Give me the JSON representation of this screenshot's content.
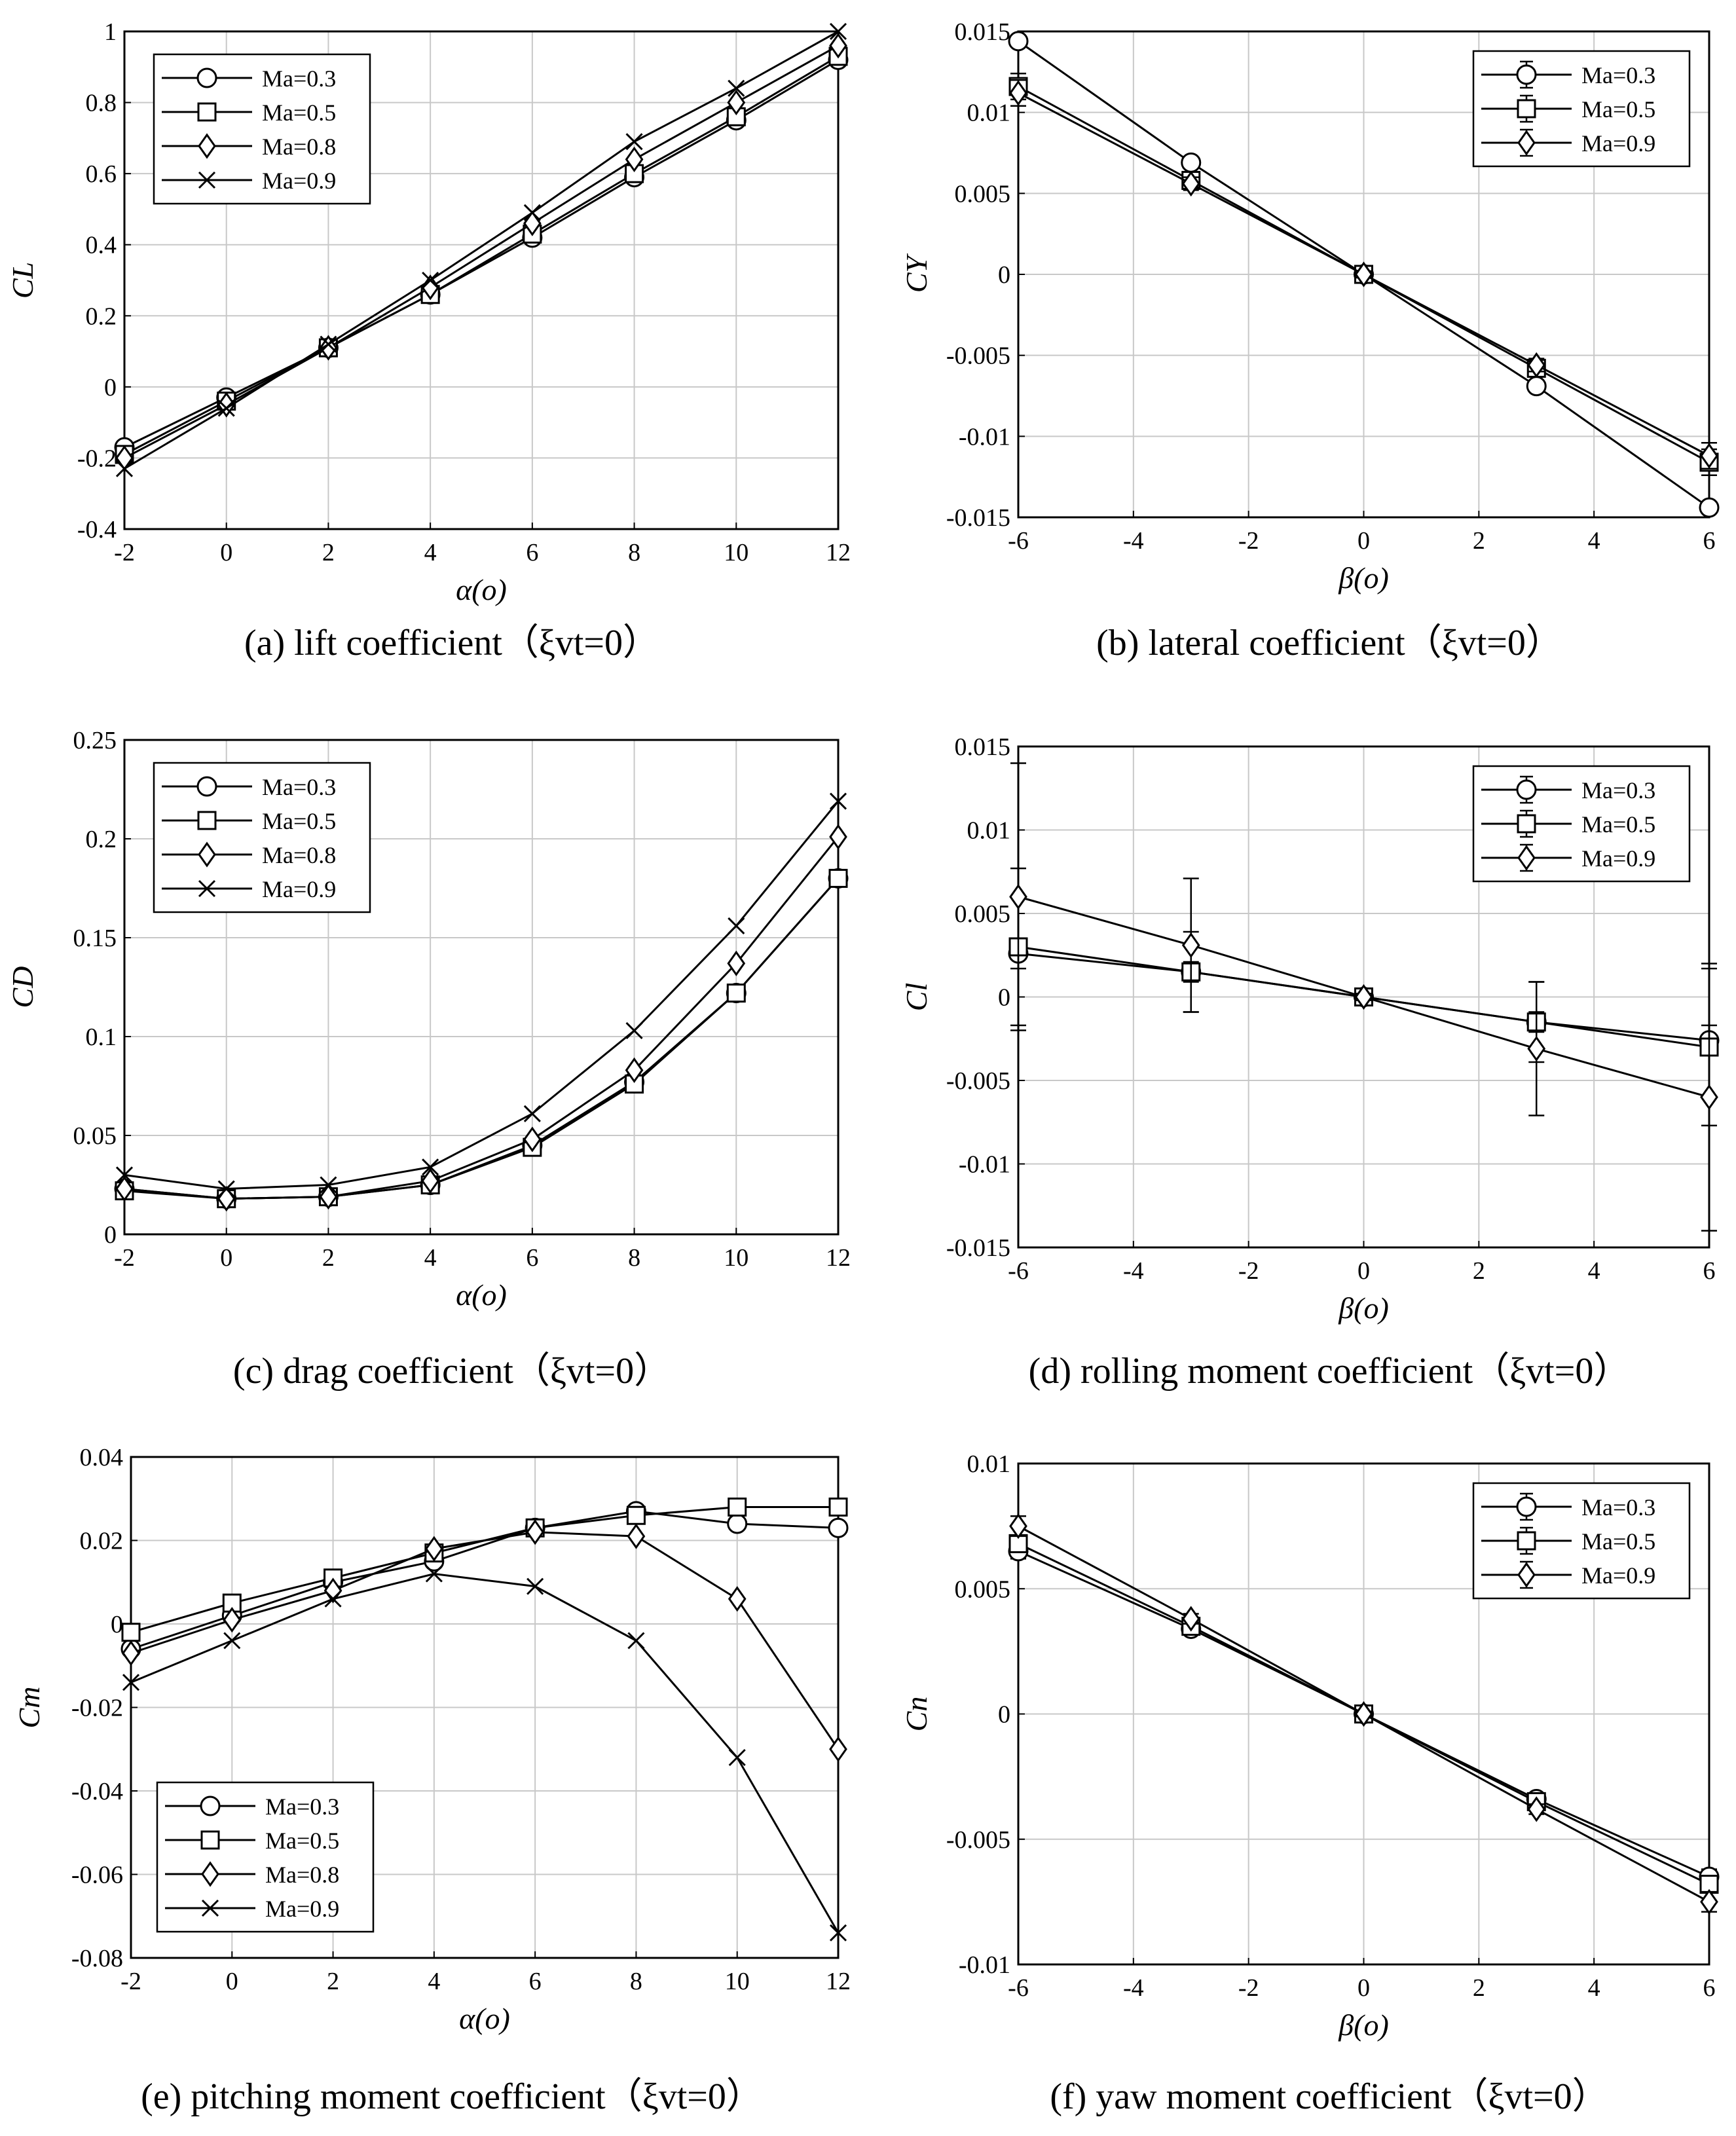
{
  "figure": "aerodynamic coefficients",
  "chart_data": [
    {
      "id": "a",
      "type": "line",
      "title": "(a) lift coefficient（ξvt=0）",
      "xlabel": "α(o)",
      "ylabel": "CL",
      "xlim": [
        -2,
        12
      ],
      "ylim": [
        -0.4,
        1.0
      ],
      "xticks": [
        -2,
        0,
        2,
        4,
        6,
        8,
        10,
        12
      ],
      "yticks": [
        -0.4,
        -0.2,
        0,
        0.2,
        0.4,
        0.6,
        0.8,
        1
      ],
      "ytick_labels": [
        "-0.4",
        "-0.2",
        "0",
        "0.2",
        "0.4",
        "0.6",
        "0.8",
        "1"
      ],
      "legend": "top-left",
      "x": [
        -2,
        0,
        2,
        4,
        6,
        8,
        10,
        12
      ],
      "series": [
        {
          "name": "Ma=0.3",
          "marker": "circle",
          "values": [
            -0.17,
            -0.03,
            0.11,
            0.26,
            0.42,
            0.59,
            0.75,
            0.92
          ]
        },
        {
          "name": "Ma=0.5",
          "marker": "square",
          "values": [
            -0.19,
            -0.04,
            0.11,
            0.26,
            0.43,
            0.6,
            0.76,
            0.93
          ]
        },
        {
          "name": "Ma=0.8",
          "marker": "diamond",
          "values": [
            -0.2,
            -0.05,
            0.11,
            0.28,
            0.46,
            0.64,
            0.8,
            0.96
          ]
        },
        {
          "name": "Ma=0.9",
          "marker": "x",
          "values": [
            -0.23,
            -0.06,
            0.12,
            0.3,
            0.49,
            0.69,
            0.84,
            1.0
          ]
        }
      ]
    },
    {
      "id": "b",
      "type": "line",
      "title": "(b) lateral coefficient（ξvt=0）",
      "xlabel": "β(o)",
      "ylabel": "CY",
      "xlim": [
        -6,
        6
      ],
      "ylim": [
        -0.015,
        0.015
      ],
      "xticks": [
        -6,
        -4,
        -2,
        0,
        2,
        4,
        6
      ],
      "yticks": [
        -0.015,
        -0.01,
        -0.005,
        0,
        0.005,
        0.01,
        0.015
      ],
      "ytick_labels": [
        "-0.015",
        "-0.01",
        "-0.005",
        "0",
        "0.005",
        "0.01",
        "0.015"
      ],
      "legend": "top-right",
      "x": [
        -6,
        -3,
        0,
        3,
        6
      ],
      "series": [
        {
          "name": "Ma=0.3",
          "marker": "circle",
          "values": [
            0.0144,
            0.0069,
            0,
            -0.0069,
            -0.0144
          ],
          "errors": [
            0.0003,
            0.0003,
            0.0002,
            0.0003,
            0.0003
          ]
        },
        {
          "name": "Ma=0.5",
          "marker": "square",
          "values": [
            0.0116,
            0.0058,
            0,
            -0.0058,
            -0.0116
          ],
          "errors": [
            0.0008,
            0.0004,
            0.0002,
            0.0004,
            0.0008
          ]
        },
        {
          "name": "Ma=0.9",
          "marker": "diamond",
          "values": [
            0.0112,
            0.0056,
            0,
            -0.0056,
            -0.0112
          ],
          "errors": [
            0.0008,
            0.0004,
            0.0002,
            0.0004,
            0.0008
          ]
        }
      ]
    },
    {
      "id": "c",
      "type": "line",
      "title": "(c) drag coefficient（ξvt=0）",
      "xlabel": "α(o)",
      "ylabel": "CD",
      "xlim": [
        -2,
        12
      ],
      "ylim": [
        0,
        0.25
      ],
      "xticks": [
        -2,
        0,
        2,
        4,
        6,
        8,
        10,
        12
      ],
      "yticks": [
        0,
        0.05,
        0.1,
        0.15,
        0.2,
        0.25
      ],
      "ytick_labels": [
        "0",
        "0.05",
        "0.1",
        "0.15",
        "0.2",
        "0.25"
      ],
      "legend": "top-left",
      "x": [
        -2,
        0,
        2,
        4,
        6,
        8,
        10,
        12
      ],
      "series": [
        {
          "name": "Ma=0.3",
          "marker": "circle",
          "values": [
            0.023,
            0.018,
            0.019,
            0.025,
            0.045,
            0.077,
            0.122,
            0.18
          ]
        },
        {
          "name": "Ma=0.5",
          "marker": "square",
          "values": [
            0.022,
            0.018,
            0.019,
            0.025,
            0.044,
            0.076,
            0.122,
            0.18
          ]
        },
        {
          "name": "Ma=0.8",
          "marker": "diamond",
          "values": [
            0.023,
            0.018,
            0.019,
            0.027,
            0.048,
            0.083,
            0.137,
            0.201
          ]
        },
        {
          "name": "Ma=0.9",
          "marker": "x",
          "values": [
            0.03,
            0.023,
            0.025,
            0.034,
            0.061,
            0.103,
            0.156,
            0.219
          ]
        }
      ]
    },
    {
      "id": "d",
      "type": "line",
      "title": "(d) rolling moment coefficient（ξvt=0）",
      "xlabel": "β(o)",
      "ylabel": "Cl",
      "xlim": [
        -6,
        6
      ],
      "ylim": [
        -0.015,
        0.015
      ],
      "xticks": [
        -6,
        -4,
        -2,
        0,
        2,
        4,
        6
      ],
      "yticks": [
        -0.015,
        -0.01,
        -0.005,
        0,
        0.005,
        0.01,
        0.015
      ],
      "ytick_labels": [
        "-0.015",
        "-0.01",
        "-0.005",
        "0",
        "0.005",
        "0.01",
        "0.015"
      ],
      "legend": "top-right",
      "x": [
        -6,
        -3,
        0,
        3,
        6
      ],
      "series": [
        {
          "name": "Ma=0.3",
          "marker": "circle",
          "values": [
            0.0026,
            0.0015,
            0,
            -0.0015,
            -0.0026
          ],
          "errors": [
            0.0009,
            0.0006,
            0.0002,
            0.0006,
            0.0009
          ]
        },
        {
          "name": "Ma=0.5",
          "marker": "square",
          "values": [
            0.003,
            0.0015,
            0,
            -0.0015,
            -0.003
          ],
          "errors": [
            0.0047,
            0.0024,
            0.0002,
            0.0024,
            0.0047
          ]
        },
        {
          "name": "Ma=0.9",
          "marker": "diamond",
          "values": [
            0.006,
            0.0031,
            0,
            -0.0031,
            -0.006
          ],
          "errors": [
            0.008,
            0.004,
            0.0002,
            0.004,
            0.008
          ]
        }
      ]
    },
    {
      "id": "e",
      "type": "line",
      "title": "(e) pitching moment coefficient（ξvt=0）",
      "xlabel": "α(o)",
      "ylabel": "Cm",
      "xlim": [
        -2,
        12
      ],
      "ylim": [
        -0.08,
        0.04
      ],
      "xticks": [
        -2,
        0,
        2,
        4,
        6,
        8,
        10,
        12
      ],
      "yticks": [
        -0.08,
        -0.06,
        -0.04,
        -0.02,
        0,
        0.02,
        0.04
      ],
      "ytick_labels": [
        "-0.08",
        "-0.06",
        "-0.04",
        "-0.02",
        "0",
        "0.02",
        "0.04"
      ],
      "legend": "bottom-left",
      "x": [
        -2,
        0,
        2,
        4,
        6,
        8,
        10,
        12
      ],
      "series": [
        {
          "name": "Ma=0.3",
          "marker": "circle",
          "values": [
            -0.006,
            0.002,
            0.01,
            0.015,
            0.023,
            0.027,
            0.024,
            0.023
          ]
        },
        {
          "name": "Ma=0.5",
          "marker": "square",
          "values": [
            -0.002,
            0.005,
            0.011,
            0.017,
            0.023,
            0.026,
            0.028,
            0.028
          ]
        },
        {
          "name": "Ma=0.8",
          "marker": "diamond",
          "values": [
            -0.007,
            0.001,
            0.008,
            0.018,
            0.022,
            0.021,
            0.006,
            -0.03
          ]
        },
        {
          "name": "Ma=0.9",
          "marker": "x",
          "values": [
            -0.014,
            -0.004,
            0.006,
            0.012,
            0.009,
            -0.004,
            -0.032,
            -0.074
          ]
        }
      ]
    },
    {
      "id": "f",
      "type": "line",
      "title": "(f) yaw moment coefficient（ξvt=0）",
      "xlabel": "β(o)",
      "ylabel": "Cn",
      "xlim": [
        -6,
        6
      ],
      "ylim": [
        -0.01,
        0.01
      ],
      "xticks": [
        -6,
        -4,
        -2,
        0,
        2,
        4,
        6
      ],
      "yticks": [
        -0.01,
        -0.005,
        0,
        0.005,
        0.01
      ],
      "ytick_labels": [
        "-0.01",
        "-0.005",
        "0",
        "0.005",
        "0.01"
      ],
      "legend": "top-right",
      "x": [
        -6,
        -3,
        0,
        3,
        6
      ],
      "series": [
        {
          "name": "Ma=0.3",
          "marker": "circle",
          "values": [
            0.0065,
            0.0034,
            0,
            -0.0034,
            -0.0065
          ],
          "errors": [
            0.0003,
            0.0002,
            0.0001,
            0.0002,
            0.0003
          ]
        },
        {
          "name": "Ma=0.5",
          "marker": "square",
          "values": [
            0.0068,
            0.0035,
            0,
            -0.0035,
            -0.0068
          ],
          "errors": [
            0.0003,
            0.0002,
            0.0001,
            0.0002,
            0.0003
          ]
        },
        {
          "name": "Ma=0.9",
          "marker": "diamond",
          "values": [
            0.0075,
            0.0038,
            0,
            -0.0038,
            -0.0075
          ],
          "errors": [
            0.0004,
            0.0002,
            0.0001,
            0.0002,
            0.0004
          ]
        }
      ]
    }
  ]
}
